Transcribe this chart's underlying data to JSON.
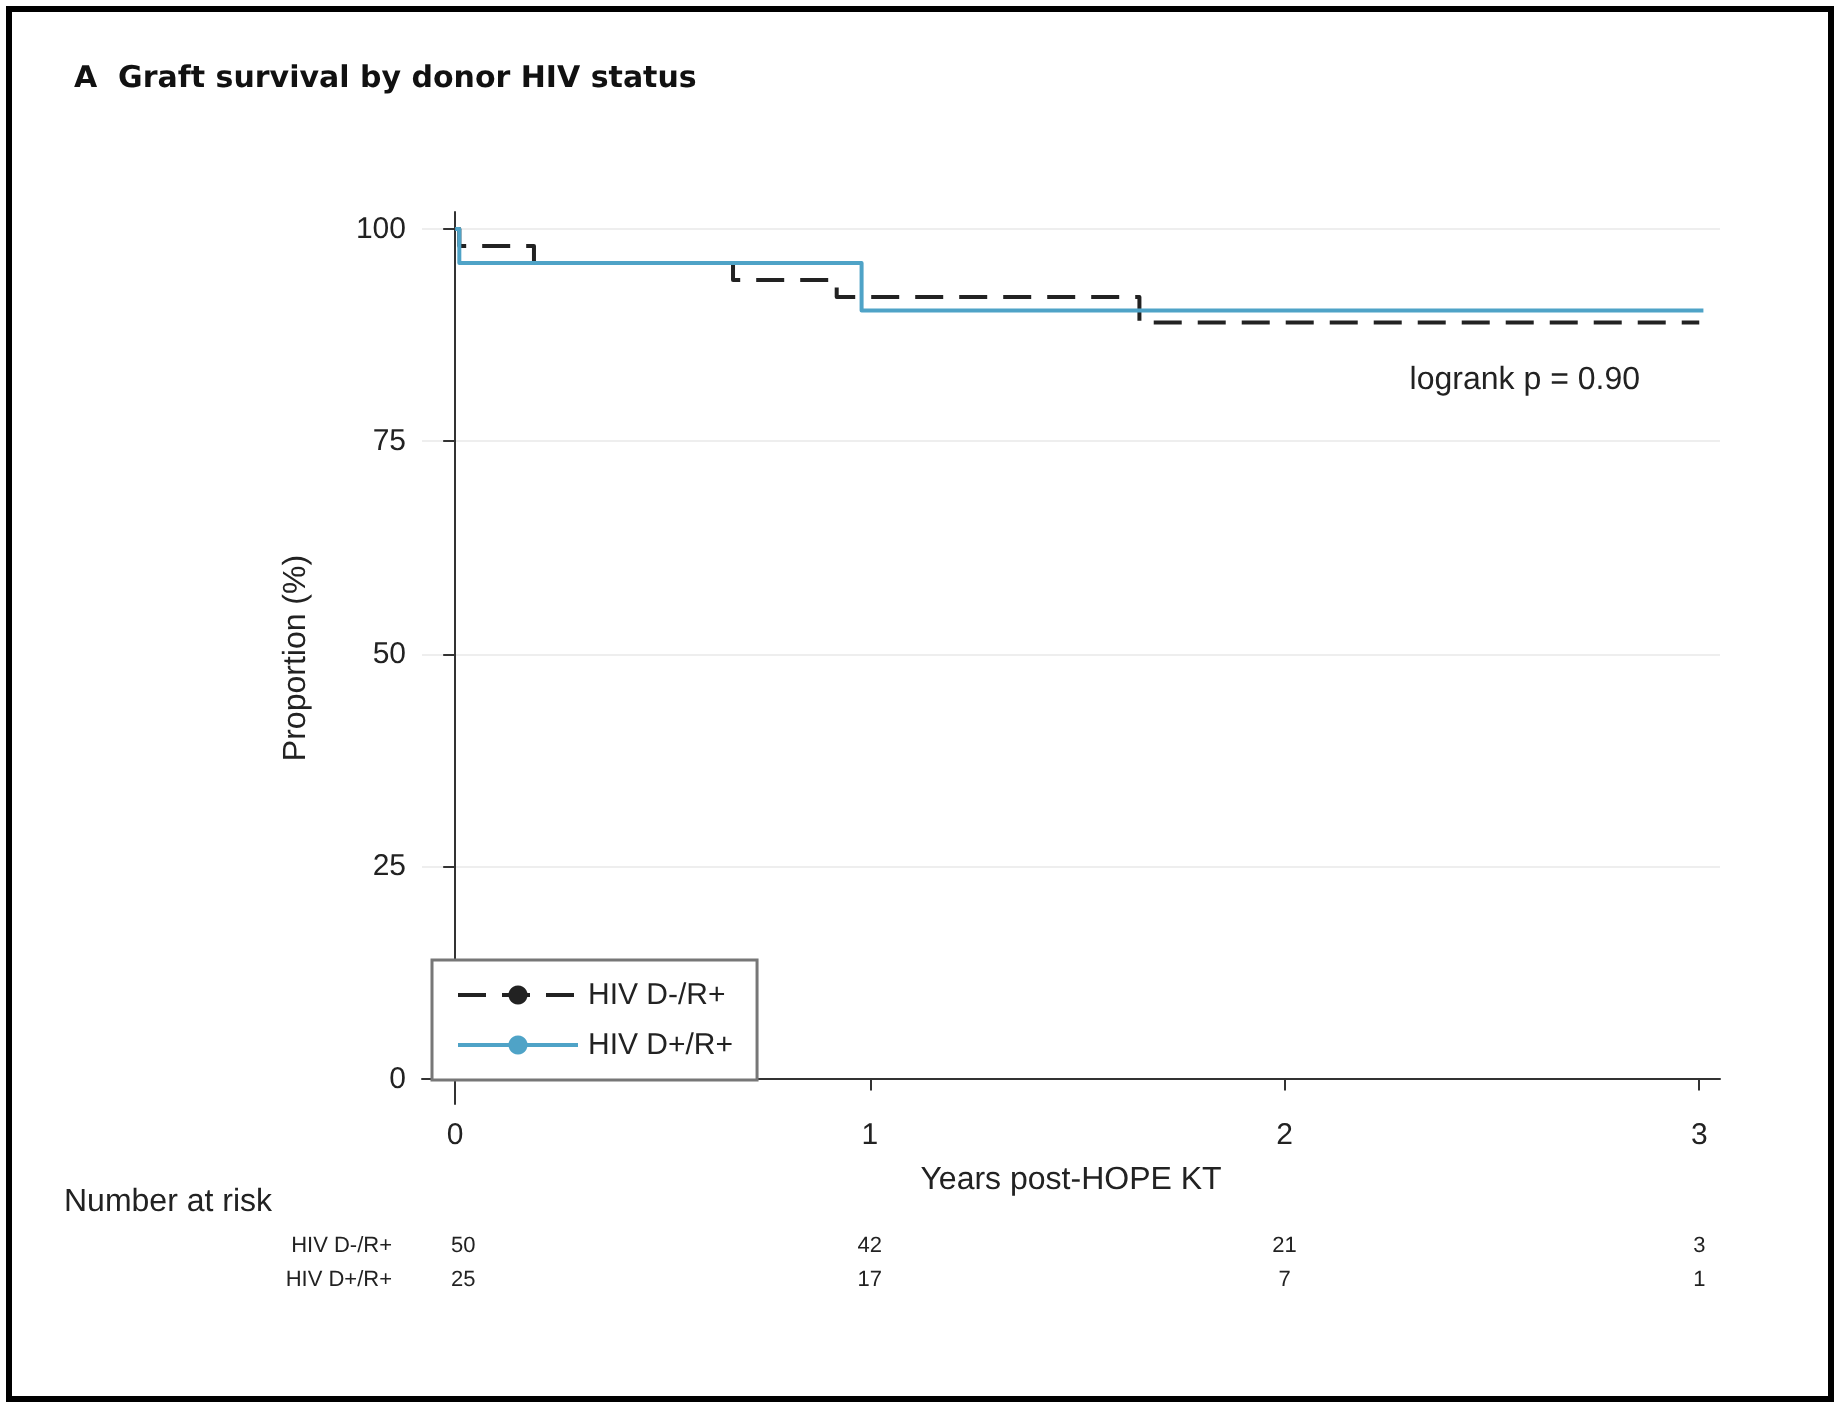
{
  "chart_data": {
    "type": "step",
    "title": "A  Graft survival by donor HIV status",
    "xlabel": "Years post-HOPE KT",
    "ylabel": "Proportion (%)",
    "series": [
      {
        "name": "HIV D-/R+",
        "color": "#222222",
        "line_style": "dashed",
        "x": [
          0,
          0.01,
          0.19,
          0.67,
          0.92,
          1.65,
          3.0
        ],
        "values": [
          100,
          98,
          96,
          94,
          92,
          89,
          89
        ]
      },
      {
        "name": "HIV D+/R+",
        "color": "#4fa3c7",
        "line_style": "solid",
        "x": [
          0,
          0.01,
          0.98,
          3.01
        ],
        "values": [
          100,
          96,
          90.4,
          90.4
        ]
      }
    ],
    "xlim": [
      -0.08,
      3.05
    ],
    "xticks": [
      0,
      1,
      2,
      3
    ],
    "ylim": [
      -3,
      102
    ],
    "yticks": [
      0,
      25,
      50,
      75,
      100
    ],
    "grid": "y",
    "legend": "bottom left",
    "marker": "none",
    "annotations": [
      "logrank p = 0.90",
      "Number at risk",
      "HIV D-/R+",
      "50",
      "42",
      "21",
      "3",
      "HIV D+/R+",
      "25",
      "17",
      "7",
      "1"
    ]
  }
}
